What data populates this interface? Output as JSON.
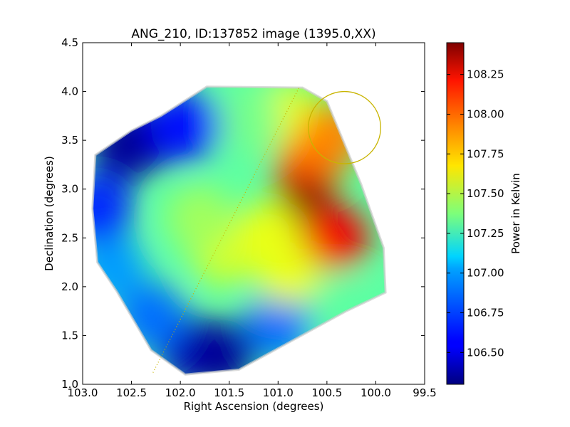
{
  "chart_data": {
    "type": "heatmap",
    "title": "ANG_210, ID:137852 image (1395.0,XX)",
    "xlabel": "Right Ascension (degrees)",
    "ylabel": "Declination (degrees)",
    "xlim": [
      103.0,
      99.5
    ],
    "ylim": [
      1.0,
      4.5
    ],
    "x_ticks": [
      "103.0",
      "102.5",
      "102.0",
      "101.5",
      "101.0",
      "100.5",
      "100.0",
      "99.5"
    ],
    "y_ticks": [
      "1.0",
      "1.5",
      "2.0",
      "2.5",
      "3.0",
      "3.5",
      "4.0",
      "4.5"
    ],
    "grid": false,
    "colorbar": {
      "label": "Power in Kelvin",
      "colormap": "jet",
      "range": [
        106.3,
        108.45
      ],
      "ticks": [
        "106.50",
        "106.75",
        "107.00",
        "107.25",
        "107.50",
        "107.75",
        "108.00",
        "108.25"
      ]
    },
    "footprint_outline": [
      [
        101.73,
        4.05
      ],
      [
        100.75,
        4.04
      ],
      [
        100.5,
        3.9
      ],
      [
        100.15,
        3.05
      ],
      [
        99.92,
        2.4
      ],
      [
        99.9,
        1.94
      ],
      [
        100.3,
        1.75
      ],
      [
        101.4,
        1.15
      ],
      [
        101.95,
        1.1
      ],
      [
        102.3,
        1.35
      ],
      [
        102.65,
        1.95
      ],
      [
        102.85,
        2.25
      ],
      [
        102.9,
        2.8
      ],
      [
        102.87,
        3.35
      ],
      [
        102.5,
        3.6
      ],
      [
        102.2,
        3.75
      ]
    ],
    "hotspots": [
      {
        "x": 100.72,
        "y": 2.78,
        "value": 108.45
      },
      {
        "x": 100.45,
        "y": 3.55,
        "value": 107.9
      },
      {
        "x": 100.4,
        "y": 2.5,
        "value": 108.2
      },
      {
        "x": 101.1,
        "y": 2.55,
        "value": 107.6
      }
    ],
    "coldspots": [
      {
        "x": 102.55,
        "y": 3.45,
        "value": 106.35
      },
      {
        "x": 101.6,
        "y": 1.3,
        "value": 106.35
      },
      {
        "x": 102.85,
        "y": 2.8,
        "value": 106.65
      },
      {
        "x": 101.95,
        "y": 3.65,
        "value": 106.6
      }
    ],
    "background_value": 107.3,
    "circle_marker": {
      "x": 100.32,
      "y": 3.63,
      "radius": 0.37,
      "color": "#c8b400"
    },
    "dotted_line": {
      "points": [
        [
          102.28,
          1.12
        ],
        [
          100.78,
          4.05
        ]
      ],
      "color": "#c8b400"
    }
  }
}
